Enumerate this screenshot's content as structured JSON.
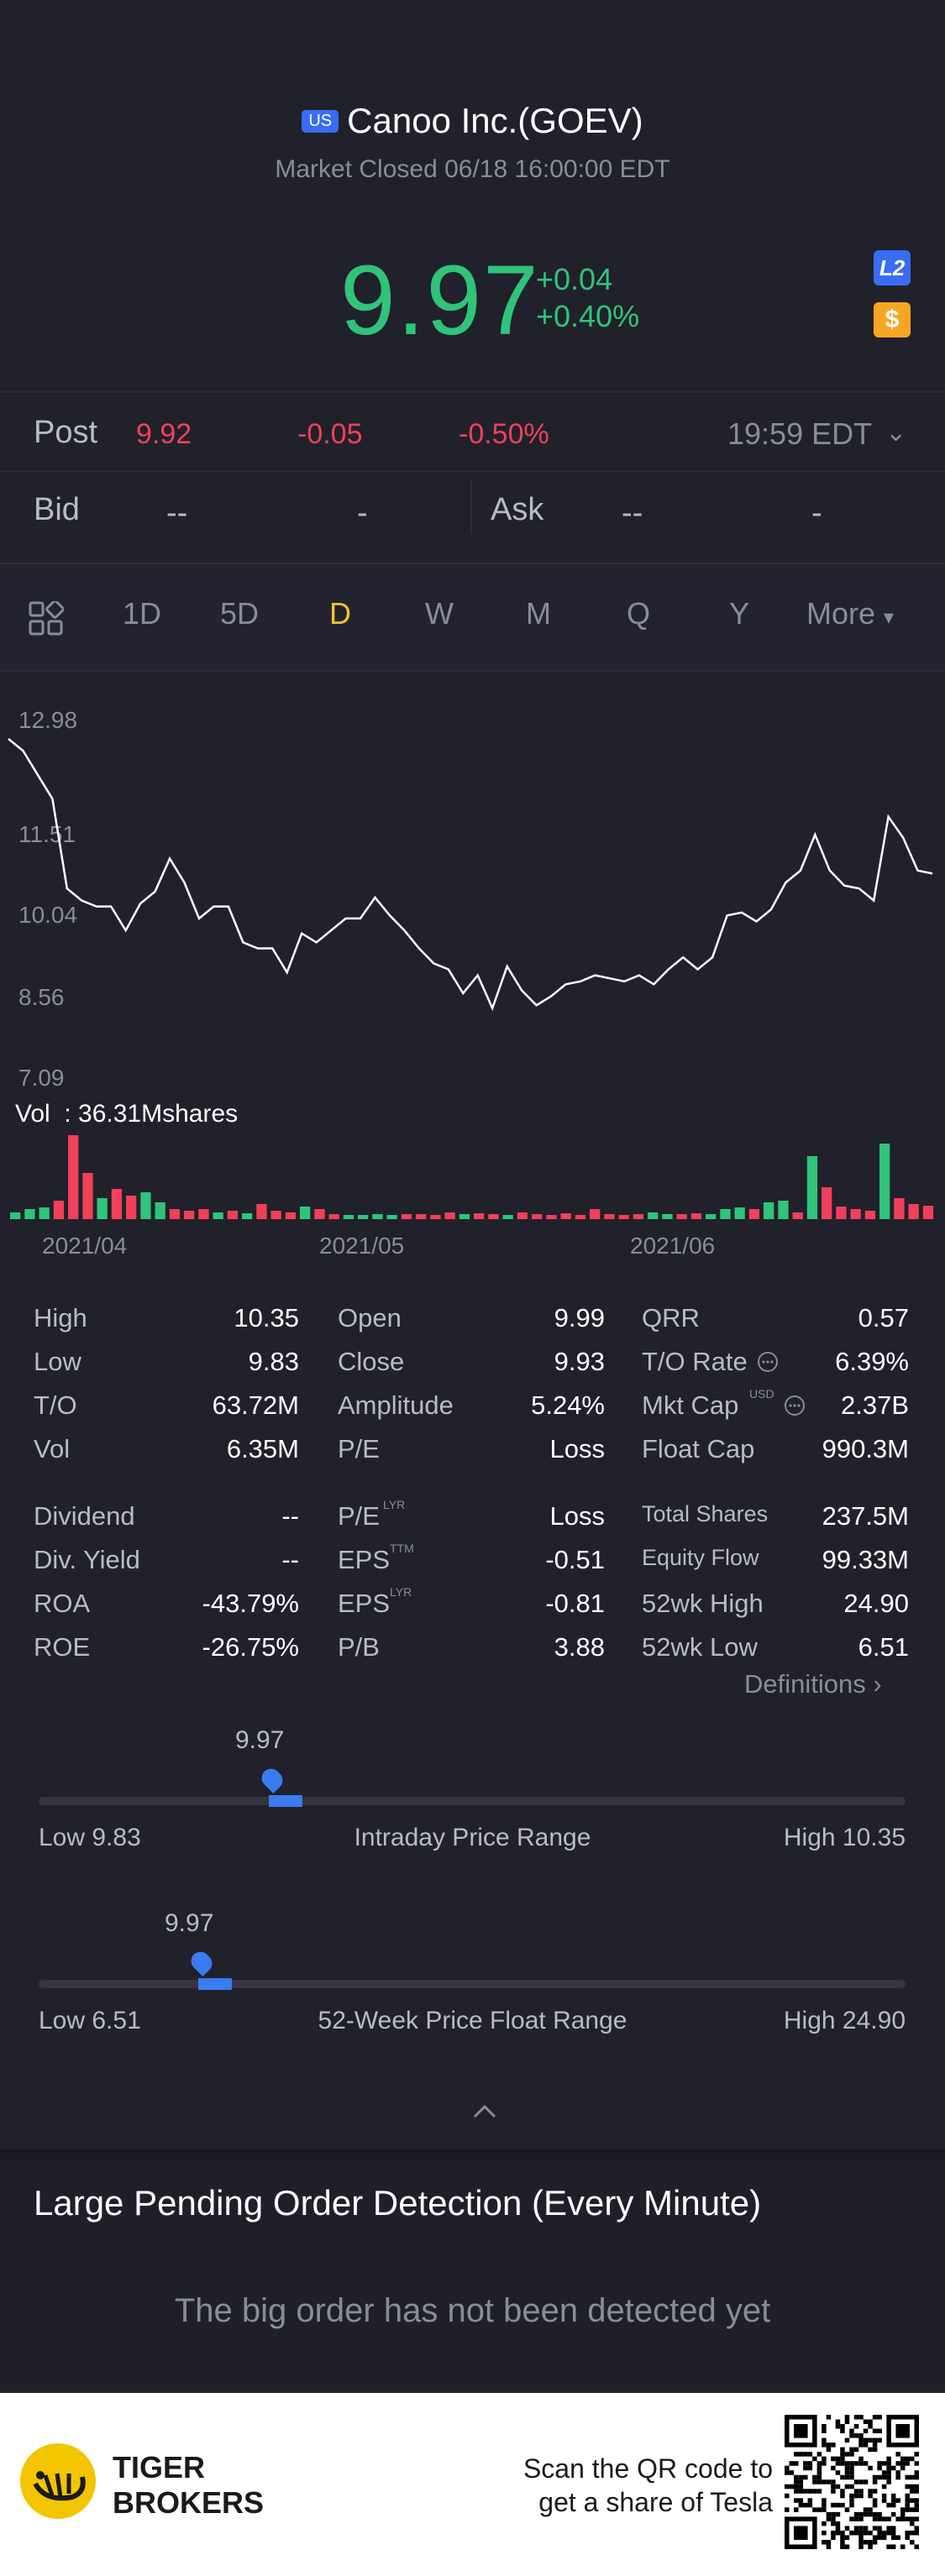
{
  "header": {
    "market_badge": "US",
    "title": "Canoo Inc.(GOEV)",
    "status": "Market Closed 06/18 16:00:00 EDT",
    "price": "9.97",
    "change": "+0.04",
    "change_pct": "+0.40%",
    "l2_label": "L2",
    "currency_label": "$"
  },
  "post": {
    "label": "Post",
    "price": "9.92",
    "change": "-0.05",
    "change_pct": "-0.50%",
    "time": "19:59 EDT"
  },
  "bidask": {
    "bid_label": "Bid",
    "bid_price": "--",
    "bid_size": "-",
    "ask_label": "Ask",
    "ask_price": "--",
    "ask_size": "-"
  },
  "tabs": [
    "1D",
    "5D",
    "D",
    "W",
    "M",
    "Q",
    "Y",
    "More"
  ],
  "active_tab": "D",
  "chart_data": {
    "type": "line",
    "y_ticks": [
      "12.98",
      "11.51",
      "10.04",
      "8.56",
      "7.09"
    ],
    "ylim": [
      7.09,
      12.98
    ],
    "x_ticks": [
      "2021/04",
      "2021/05",
      "2021/06"
    ],
    "values": [
      12.7,
      12.5,
      12.1,
      11.7,
      10.2,
      10.0,
      9.9,
      9.9,
      9.5,
      9.95,
      10.15,
      10.7,
      10.3,
      9.7,
      9.9,
      9.9,
      9.3,
      9.2,
      9.2,
      8.8,
      9.45,
      9.3,
      9.5,
      9.7,
      9.7,
      10.05,
      9.75,
      9.5,
      9.2,
      8.95,
      8.85,
      8.45,
      8.75,
      8.2,
      8.9,
      8.5,
      8.25,
      8.4,
      8.6,
      8.65,
      8.75,
      8.7,
      8.65,
      8.75,
      8.6,
      8.85,
      9.05,
      8.85,
      9.05,
      9.75,
      9.8,
      9.65,
      9.85,
      10.3,
      10.5,
      11.1,
      10.5,
      10.25,
      10.2,
      10.0,
      11.4,
      11.05,
      10.5,
      10.45
    ],
    "volume_label": "Vol  : 36.31Mshares",
    "volume_bars": [
      {
        "v": 0.08,
        "up": true
      },
      {
        "v": 0.12,
        "up": true
      },
      {
        "v": 0.14,
        "up": true
      },
      {
        "v": 0.22,
        "up": false
      },
      {
        "v": 1.0,
        "up": false
      },
      {
        "v": 0.55,
        "up": false
      },
      {
        "v": 0.25,
        "up": true
      },
      {
        "v": 0.36,
        "up": false
      },
      {
        "v": 0.28,
        "up": false
      },
      {
        "v": 0.32,
        "up": true
      },
      {
        "v": 0.2,
        "up": true
      },
      {
        "v": 0.12,
        "up": false
      },
      {
        "v": 0.1,
        "up": false
      },
      {
        "v": 0.12,
        "up": false
      },
      {
        "v": 0.08,
        "up": true
      },
      {
        "v": 0.1,
        "up": false
      },
      {
        "v": 0.07,
        "up": true
      },
      {
        "v": 0.18,
        "up": false
      },
      {
        "v": 0.1,
        "up": false
      },
      {
        "v": 0.08,
        "up": false
      },
      {
        "v": 0.15,
        "up": true
      },
      {
        "v": 0.12,
        "up": false
      },
      {
        "v": 0.06,
        "up": false
      },
      {
        "v": 0.05,
        "up": true
      },
      {
        "v": 0.05,
        "up": true
      },
      {
        "v": 0.06,
        "up": true
      },
      {
        "v": 0.05,
        "up": true
      },
      {
        "v": 0.06,
        "up": false
      },
      {
        "v": 0.06,
        "up": false
      },
      {
        "v": 0.05,
        "up": false
      },
      {
        "v": 0.08,
        "up": false
      },
      {
        "v": 0.06,
        "up": true
      },
      {
        "v": 0.07,
        "up": false
      },
      {
        "v": 0.06,
        "up": false
      },
      {
        "v": 0.05,
        "up": true
      },
      {
        "v": 0.08,
        "up": false
      },
      {
        "v": 0.06,
        "up": false
      },
      {
        "v": 0.05,
        "up": false
      },
      {
        "v": 0.07,
        "up": false
      },
      {
        "v": 0.05,
        "up": false
      },
      {
        "v": 0.12,
        "up": false
      },
      {
        "v": 0.06,
        "up": false
      },
      {
        "v": 0.05,
        "up": false
      },
      {
        "v": 0.06,
        "up": false
      },
      {
        "v": 0.08,
        "up": true
      },
      {
        "v": 0.06,
        "up": true
      },
      {
        "v": 0.06,
        "up": false
      },
      {
        "v": 0.07,
        "up": false
      },
      {
        "v": 0.06,
        "up": true
      },
      {
        "v": 0.12,
        "up": true
      },
      {
        "v": 0.14,
        "up": true
      },
      {
        "v": 0.12,
        "up": false
      },
      {
        "v": 0.2,
        "up": true
      },
      {
        "v": 0.22,
        "up": true
      },
      {
        "v": 0.08,
        "up": false
      },
      {
        "v": 0.75,
        "up": true
      },
      {
        "v": 0.38,
        "up": false
      },
      {
        "v": 0.15,
        "up": false
      },
      {
        "v": 0.12,
        "up": false
      },
      {
        "v": 0.1,
        "up": false
      },
      {
        "v": 0.9,
        "up": true
      },
      {
        "v": 0.25,
        "up": false
      },
      {
        "v": 0.18,
        "up": false
      },
      {
        "v": 0.16,
        "up": false
      }
    ]
  },
  "stats": [
    [
      {
        "label": "High",
        "value": "10.35"
      },
      {
        "label": "Open",
        "value": "9.99"
      },
      {
        "label": "QRR",
        "value": "0.57"
      }
    ],
    [
      {
        "label": "Low",
        "value": "9.83"
      },
      {
        "label": "Close",
        "value": "9.93"
      },
      {
        "label": "T/O Rate",
        "value": "6.39%"
      }
    ],
    [
      {
        "label": "T/O",
        "value": "63.72M"
      },
      {
        "label": "Amplitude",
        "value": "5.24%"
      },
      {
        "label": "Mkt Cap",
        "value": "2.37B"
      }
    ],
    [
      {
        "label": "Vol",
        "value": "6.35M"
      },
      {
        "label": "P/E",
        "value": "Loss"
      },
      {
        "label": "Float Cap",
        "value": "990.3M"
      }
    ],
    [
      {
        "label": "Dividend",
        "value": "--"
      },
      {
        "label": "P/E",
        "value": "Loss"
      },
      {
        "label": "Total Shares",
        "value": "237.5M"
      }
    ],
    [
      {
        "label": "Div. Yield",
        "value": "--"
      },
      {
        "label": "EPS",
        "value": "-0.51"
      },
      {
        "label": "Equity Flow",
        "value": "99.33M"
      }
    ],
    [
      {
        "label": "ROA",
        "value": "-43.79%"
      },
      {
        "label": "EPS",
        "value": "-0.81"
      },
      {
        "label": "52wk High",
        "value": "24.90"
      }
    ],
    [
      {
        "label": "ROE",
        "value": "-26.75%"
      },
      {
        "label": "P/B",
        "value": "3.88"
      },
      {
        "label": "52wk Low",
        "value": "6.51"
      }
    ]
  ],
  "superscripts": {
    "mktcap": "USD",
    "pe_lyr": "LYR",
    "eps_ttm": "TTM",
    "eps_lyr": "LYR"
  },
  "definitions_label": "Definitions",
  "intraday": {
    "current": "9.97",
    "low_label": "Low 9.83",
    "title": "Intraday Price Range",
    "high_label": "High 10.35",
    "low": 9.83,
    "high": 10.35,
    "value": 9.97
  },
  "week52": {
    "current": "9.97",
    "low_label": "Low 6.51",
    "title": "52-Week Price Float Range",
    "high_label": "High 24.90",
    "low": 6.51,
    "high": 24.9,
    "value": 9.97
  },
  "large_pending": {
    "title": "Large Pending Order Detection (Every Minute)",
    "message": "The big order has not been detected yet"
  },
  "footer": {
    "brand_line1": "TIGER",
    "brand_line2": "BROKERS",
    "scan_line1": "Scan the QR code to",
    "scan_line2": "get a share of Tesla"
  },
  "colors": {
    "up": "#2fc47a",
    "down": "#f0405a",
    "accent": "#f2c230",
    "blue": "#3a7bf0"
  }
}
